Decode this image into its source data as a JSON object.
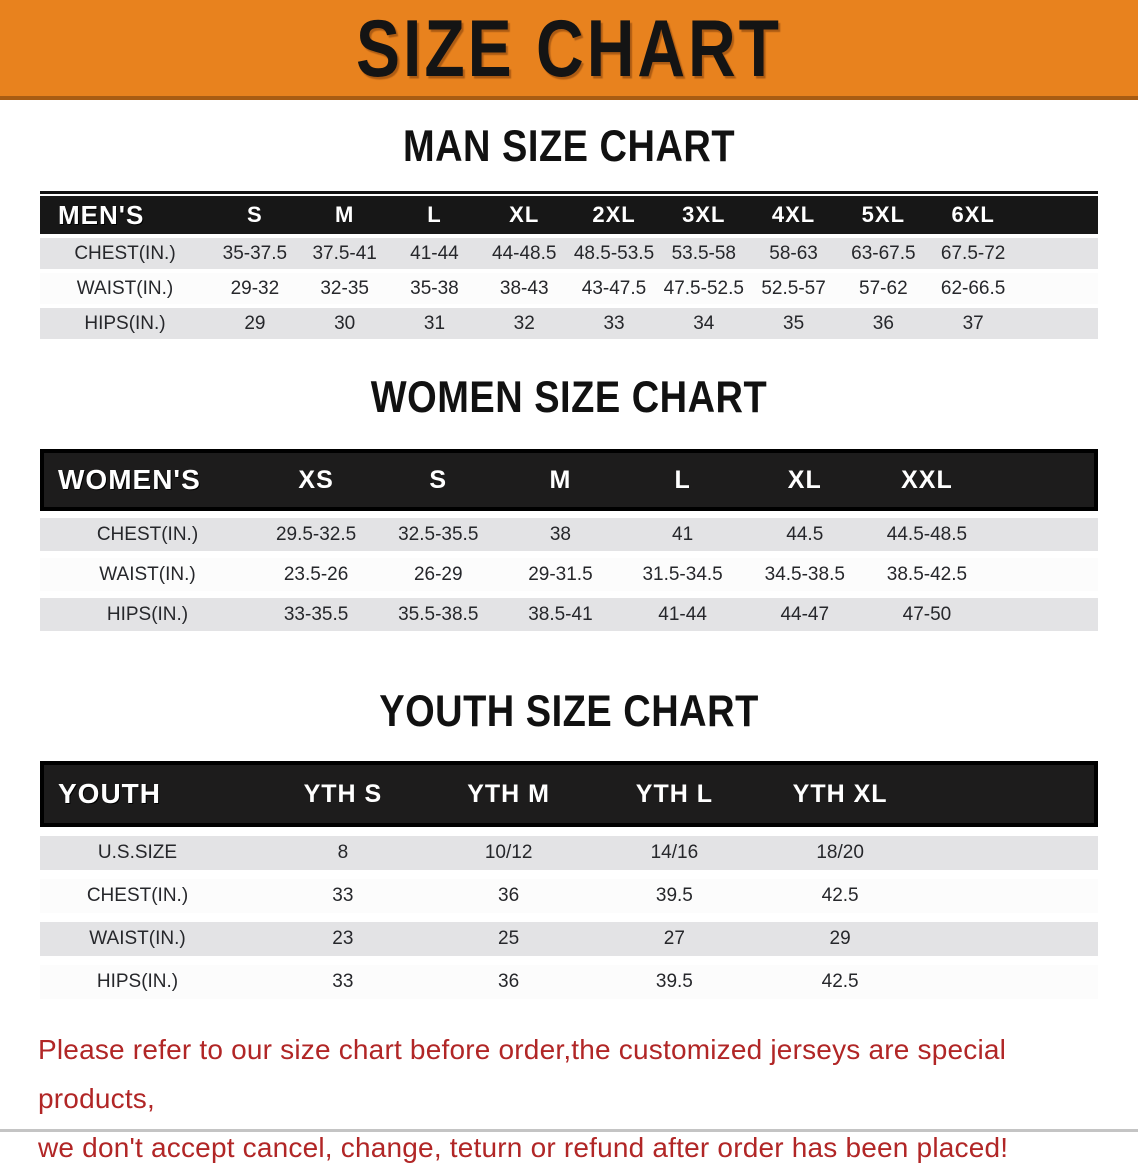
{
  "banner": {
    "title": "SIZE CHART"
  },
  "sections": [
    {
      "heading": "MAN SIZE CHART",
      "table": {
        "label": "MEN'S",
        "columns": [
          "S",
          "M",
          "L",
          "XL",
          "2XL",
          "3XL",
          "4XL",
          "5XL",
          "6XL"
        ],
        "rows": [
          {
            "label": "CHEST(IN.)",
            "values": [
              "35-37.5",
              "37.5-41",
              "41-44",
              "44-48.5",
              "48.5-53.5",
              "53.5-58",
              "58-63",
              "63-67.5",
              "67.5-72"
            ]
          },
          {
            "label": "WAIST(IN.)",
            "values": [
              "29-32",
              "32-35",
              "35-38",
              "38-43",
              "43-47.5",
              "47.5-52.5",
              "52.5-57",
              "57-62",
              "62-66.5"
            ]
          },
          {
            "label": "HIPS(IN.)",
            "values": [
              "29",
              "30",
              "31",
              "32",
              "33",
              "34",
              "35",
              "36",
              "37"
            ]
          }
        ]
      }
    },
    {
      "heading": "WOMEN SIZE CHART",
      "table": {
        "label": "WOMEN'S",
        "columns": [
          "XS",
          "S",
          "M",
          "L",
          "XL",
          "XXL"
        ],
        "rows": [
          {
            "label": "CHEST(IN.)",
            "values": [
              "29.5-32.5",
              "32.5-35.5",
              "38",
              "41",
              "44.5",
              "44.5-48.5"
            ]
          },
          {
            "label": "WAIST(IN.)",
            "values": [
              "23.5-26",
              "26-29",
              "29-31.5",
              "31.5-34.5",
              "34.5-38.5",
              "38.5-42.5"
            ]
          },
          {
            "label": "HIPS(IN.)",
            "values": [
              "33-35.5",
              "35.5-38.5",
              "38.5-41",
              "41-44",
              "44-47",
              "47-50"
            ]
          }
        ]
      }
    },
    {
      "heading": "YOUTH SIZE CHART",
      "table": {
        "label": "YOUTH",
        "columns": [
          "YTH S",
          "YTH M",
          "YTH L",
          "YTH XL"
        ],
        "rows": [
          {
            "label": "U.S.SIZE",
            "values": [
              "8",
              "10/12",
              "14/16",
              "18/20"
            ]
          },
          {
            "label": "CHEST(IN.)",
            "values": [
              "33",
              "36",
              "39.5",
              "42.5"
            ]
          },
          {
            "label": "WAIST(IN.)",
            "values": [
              "23",
              "25",
              "27",
              "29"
            ]
          },
          {
            "label": "HIPS(IN.)",
            "values": [
              "33",
              "36",
              "39.5",
              "42.5"
            ]
          }
        ]
      }
    }
  ],
  "footer": {
    "line1": "Please refer to our size chart before order,the customized jerseys are special products,",
    "line2": "we don't accept cancel, change, teturn or refund after order has been placed!"
  },
  "colors": {
    "banner_bg": "#E8821E",
    "banner_edge": "#A85C13",
    "table_header_bg": "#171717",
    "row_gray": "#E3E3E5",
    "row_white": "#FCFCFC",
    "text_dark": "#26272B",
    "footer_red": "#B12626"
  }
}
